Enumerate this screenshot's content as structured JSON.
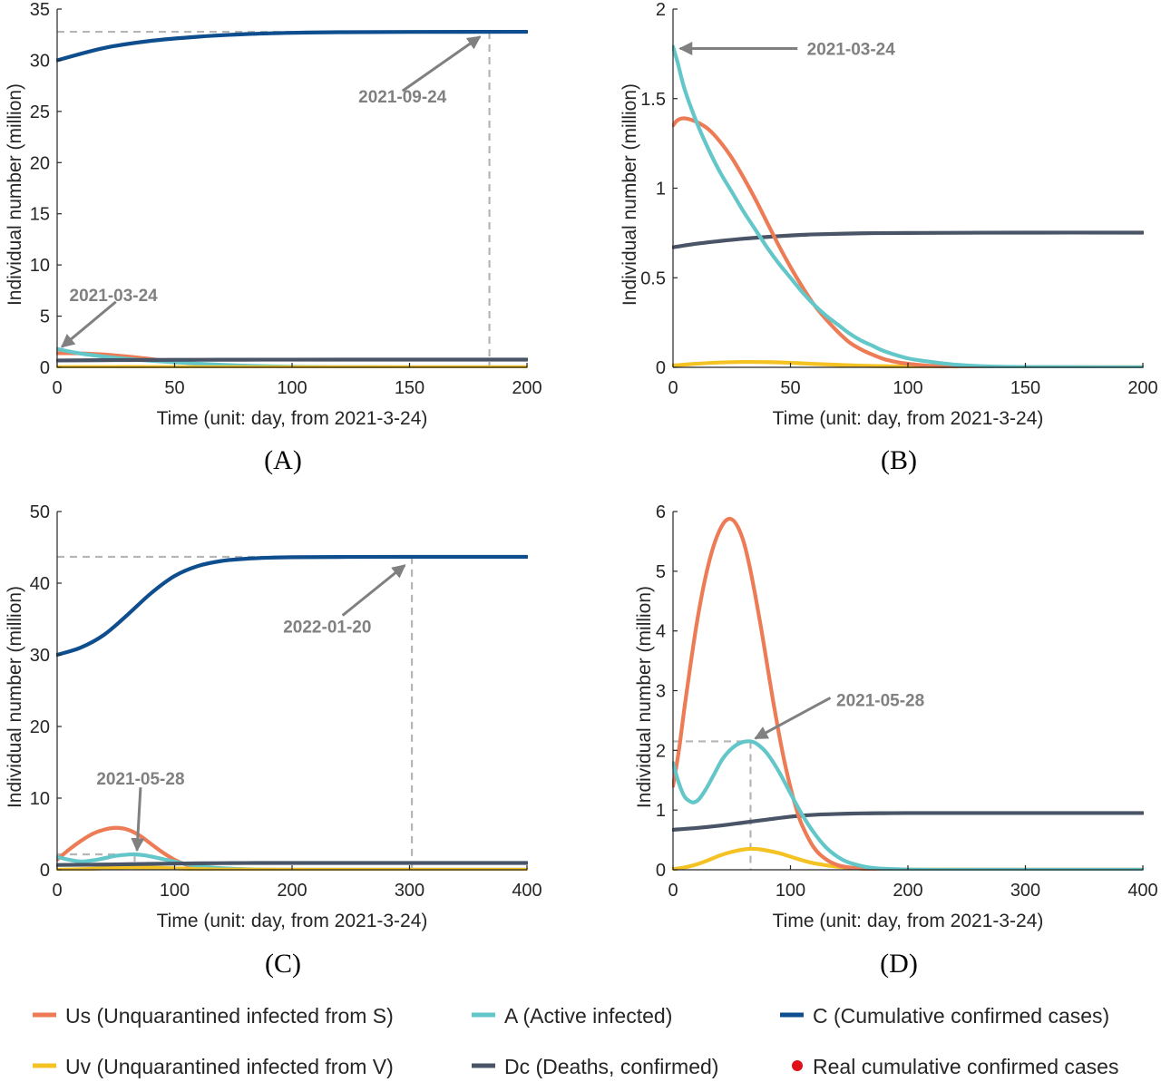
{
  "legend": [
    {
      "label": "Us (Unquarantined infected from S)",
      "color": "#ED7B55",
      "marker": "line"
    },
    {
      "label": "A (Active infected)",
      "color": "#63C6C8",
      "marker": "line"
    },
    {
      "label": "C (Cumulative confirmed cases)",
      "color": "#0E4E8E",
      "marker": "line"
    },
    {
      "label": "Uv (Unquarantined infected from V)",
      "color": "#F4C222",
      "marker": "line"
    },
    {
      "label": "Dc (Deaths, confirmed)",
      "color": "#4A5467",
      "marker": "line"
    },
    {
      "label": "Real cumulative confirmed cases",
      "color": "#E0101A",
      "marker": "dot"
    }
  ],
  "chart_data": [
    {
      "type": "line",
      "panel_label": "(A)",
      "xlabel": "Time (unit: day, from 2021-3-24)",
      "ylabel": "Individual number (million)",
      "xlim": [
        0,
        200
      ],
      "ylim": [
        0,
        35
      ],
      "xticks": [
        0,
        50,
        100,
        150,
        200
      ],
      "yticks": [
        0,
        5,
        10,
        15,
        20,
        25,
        30,
        35
      ],
      "series": [
        {
          "key": "C",
          "color": "#0E4E8E",
          "x": [
            0,
            20,
            40,
            60,
            80,
            100,
            120,
            150,
            200
          ],
          "y": [
            30.0,
            31.2,
            31.9,
            32.3,
            32.55,
            32.68,
            32.74,
            32.77,
            32.78
          ]
        },
        {
          "key": "Us",
          "color": "#ED7B55",
          "x": [
            0,
            10,
            20,
            30,
            40,
            50,
            60,
            70,
            80,
            100,
            120,
            200
          ],
          "y": [
            1.38,
            1.37,
            1.25,
            1.05,
            0.8,
            0.55,
            0.33,
            0.17,
            0.07,
            0.01,
            0.0,
            0.0
          ]
        },
        {
          "key": "A",
          "color": "#63C6C8",
          "x": [
            0,
            10,
            20,
            30,
            40,
            50,
            60,
            70,
            80,
            100,
            120,
            150,
            200
          ],
          "y": [
            1.79,
            1.35,
            1.05,
            0.82,
            0.64,
            0.5,
            0.36,
            0.25,
            0.16,
            0.05,
            0.01,
            0.0,
            0.0
          ]
        },
        {
          "key": "Uv",
          "color": "#F4C222",
          "x": [
            0,
            15,
            30,
            45,
            60,
            80,
            100,
            200
          ],
          "y": [
            0.01,
            0.025,
            0.03,
            0.025,
            0.018,
            0.008,
            0.003,
            0.0
          ]
        },
        {
          "key": "Dc",
          "color": "#4A5467",
          "x": [
            0,
            20,
            40,
            60,
            80,
            100,
            150,
            200
          ],
          "y": [
            0.67,
            0.7,
            0.72,
            0.735,
            0.745,
            0.75,
            0.752,
            0.752
          ]
        }
      ],
      "guides": [
        {
          "points": [
            [
              0,
              32.78
            ],
            [
              184,
              32.78
            ]
          ]
        },
        {
          "points": [
            [
              184,
              32.78
            ],
            [
              184,
              0
            ]
          ]
        }
      ],
      "annotations": [
        {
          "text": "2021-09-24",
          "tip": [
            180,
            32.3
          ],
          "tail": [
            147,
            27.0
          ],
          "label": [
            147,
            26.5
          ]
        },
        {
          "text": "2021-03-24",
          "tip": [
            2,
            2.0
          ],
          "tail": [
            25,
            6.4
          ],
          "label": [
            24,
            7.1
          ]
        }
      ]
    },
    {
      "type": "line",
      "panel_label": "(B)",
      "xlabel": "Time (unit: day, from 2021-3-24)",
      "ylabel": "Individual number (million)",
      "xlim": [
        0,
        200
      ],
      "ylim": [
        0,
        2
      ],
      "xticks": [
        0,
        50,
        100,
        150,
        200
      ],
      "yticks": [
        0,
        0.5,
        1,
        1.5,
        2
      ],
      "series": [
        {
          "key": "Dc",
          "color": "#4A5467",
          "x": [
            0,
            10,
            20,
            30,
            40,
            50,
            60,
            80,
            100,
            150,
            200
          ],
          "y": [
            0.67,
            0.69,
            0.705,
            0.718,
            0.728,
            0.736,
            0.742,
            0.748,
            0.75,
            0.752,
            0.752
          ]
        },
        {
          "key": "Uv",
          "color": "#F4C222",
          "x": [
            0,
            10,
            20,
            30,
            40,
            50,
            60,
            80,
            100,
            130,
            200
          ],
          "y": [
            0.01,
            0.02,
            0.027,
            0.03,
            0.029,
            0.025,
            0.019,
            0.009,
            0.004,
            0.001,
            0.0
          ]
        },
        {
          "key": "Us",
          "color": "#ED7B55",
          "x": [
            0,
            2,
            5,
            10,
            15,
            20,
            25,
            30,
            35,
            40,
            45,
            50,
            55,
            60,
            65,
            70,
            75,
            80,
            85,
            90,
            95,
            100,
            110,
            120,
            130,
            150,
            200
          ],
          "y": [
            1.35,
            1.38,
            1.39,
            1.37,
            1.33,
            1.26,
            1.17,
            1.06,
            0.94,
            0.81,
            0.68,
            0.56,
            0.45,
            0.35,
            0.27,
            0.2,
            0.14,
            0.1,
            0.07,
            0.045,
            0.03,
            0.02,
            0.008,
            0.003,
            0.001,
            0.0,
            0.0
          ]
        },
        {
          "key": "A",
          "color": "#63C6C8",
          "x": [
            0,
            2,
            5,
            10,
            15,
            20,
            25,
            30,
            35,
            40,
            45,
            50,
            55,
            60,
            65,
            70,
            75,
            80,
            85,
            90,
            100,
            110,
            120,
            130,
            150,
            200
          ],
          "y": [
            1.79,
            1.7,
            1.55,
            1.37,
            1.22,
            1.09,
            0.98,
            0.87,
            0.77,
            0.67,
            0.58,
            0.5,
            0.42,
            0.35,
            0.29,
            0.24,
            0.19,
            0.15,
            0.12,
            0.09,
            0.05,
            0.03,
            0.015,
            0.007,
            0.002,
            0.0
          ]
        }
      ],
      "guides": [],
      "annotations": [
        {
          "text": "2021-03-24",
          "tip": [
            3,
            1.78
          ],
          "tail": [
            53,
            1.78
          ],
          "label": [
            57,
            1.78
          ]
        }
      ]
    },
    {
      "type": "line",
      "panel_label": "(C)",
      "xlabel": "Time (unit: day, from 2021-3-24)",
      "ylabel": "Individual number (million)",
      "xlim": [
        0,
        400
      ],
      "ylim": [
        0,
        50
      ],
      "xticks": [
        0,
        100,
        200,
        300,
        400
      ],
      "yticks": [
        0,
        10,
        20,
        30,
        40,
        50
      ],
      "series": [
        {
          "key": "C",
          "color": "#0E4E8E",
          "x": [
            0,
            20,
            40,
            60,
            80,
            100,
            120,
            140,
            160,
            180,
            200,
            240,
            300,
            400
          ],
          "y": [
            30.0,
            31.0,
            32.8,
            35.6,
            38.6,
            41.0,
            42.4,
            43.1,
            43.4,
            43.55,
            43.62,
            43.66,
            43.68,
            43.68
          ]
        },
        {
          "key": "Us",
          "color": "#ED7B55",
          "x": [
            0,
            10,
            20,
            30,
            40,
            50,
            60,
            70,
            80,
            90,
            100,
            110,
            120,
            140,
            160,
            200,
            400
          ],
          "y": [
            1.4,
            2.8,
            4.0,
            5.0,
            5.6,
            5.85,
            5.6,
            4.8,
            3.6,
            2.4,
            1.4,
            0.7,
            0.3,
            0.05,
            0.01,
            0.0,
            0.0
          ]
        },
        {
          "key": "A",
          "color": "#63C6C8",
          "x": [
            0,
            10,
            20,
            30,
            40,
            50,
            60,
            66,
            75,
            90,
            110,
            130,
            160,
            200,
            400
          ],
          "y": [
            1.79,
            1.4,
            1.15,
            1.3,
            1.6,
            1.95,
            2.12,
            2.15,
            2.0,
            1.5,
            0.8,
            0.35,
            0.08,
            0.01,
            0.0
          ]
        },
        {
          "key": "Uv",
          "color": "#F4C222",
          "x": [
            0,
            20,
            40,
            60,
            66,
            80,
            100,
            120,
            150,
            200,
            400
          ],
          "y": [
            0.01,
            0.08,
            0.22,
            0.34,
            0.35,
            0.31,
            0.2,
            0.1,
            0.03,
            0.003,
            0.0
          ]
        },
        {
          "key": "Dc",
          "color": "#4A5467",
          "x": [
            0,
            40,
            80,
            120,
            160,
            200,
            300,
            400
          ],
          "y": [
            0.67,
            0.73,
            0.82,
            0.9,
            0.94,
            0.95,
            0.95,
            0.95
          ]
        }
      ],
      "guides": [
        {
          "points": [
            [
              0,
              43.68
            ],
            [
              302,
              43.68
            ]
          ]
        },
        {
          "points": [
            [
              302,
              43.68
            ],
            [
              302,
              0
            ]
          ]
        },
        {
          "points": [
            [
              0,
              2.15
            ],
            [
              66,
              2.15
            ]
          ]
        },
        {
          "points": [
            [
              66,
              2.15
            ],
            [
              66,
              0
            ]
          ]
        }
      ],
      "annotations": [
        {
          "text": "2022-01-20",
          "tip": [
            296,
            42.5
          ],
          "tail": [
            243,
            35.5
          ],
          "label": [
            230,
            34.0
          ]
        },
        {
          "text": "2021-05-28",
          "tip": [
            68,
            2.7
          ],
          "tail": [
            71,
            11.5
          ],
          "label": [
            71,
            12.8
          ]
        }
      ]
    },
    {
      "type": "line",
      "panel_label": "(D)",
      "xlabel": "Time (unit: day, from 2021-3-24)",
      "ylabel": "Individual number (million)",
      "xlim": [
        0,
        400
      ],
      "ylim": [
        0,
        6
      ],
      "xticks": [
        0,
        100,
        200,
        300,
        400
      ],
      "yticks": [
        0,
        1,
        2,
        3,
        4,
        5,
        6
      ],
      "series": [
        {
          "key": "Dc",
          "color": "#4A5467",
          "x": [
            0,
            20,
            40,
            60,
            80,
            100,
            120,
            140,
            160,
            180,
            200,
            250,
            300,
            400
          ],
          "y": [
            0.67,
            0.7,
            0.74,
            0.79,
            0.84,
            0.89,
            0.92,
            0.935,
            0.945,
            0.948,
            0.95,
            0.95,
            0.95,
            0.95
          ]
        },
        {
          "key": "Uv",
          "color": "#F4C222",
          "x": [
            0,
            10,
            20,
            30,
            40,
            50,
            60,
            66,
            75,
            90,
            100,
            110,
            120,
            140,
            160,
            200,
            400
          ],
          "y": [
            0.01,
            0.04,
            0.09,
            0.16,
            0.24,
            0.3,
            0.34,
            0.35,
            0.34,
            0.28,
            0.22,
            0.16,
            0.11,
            0.05,
            0.02,
            0.003,
            0.0
          ]
        },
        {
          "key": "Us",
          "color": "#ED7B55",
          "x": [
            0,
            5,
            10,
            15,
            20,
            25,
            30,
            35,
            40,
            45,
            50,
            55,
            60,
            65,
            70,
            75,
            80,
            85,
            90,
            95,
            100,
            105,
            110,
            120,
            130,
            140,
            150,
            170,
            200,
            250,
            400
          ],
          "y": [
            1.4,
            2.0,
            2.75,
            3.45,
            4.1,
            4.65,
            5.1,
            5.45,
            5.7,
            5.85,
            5.87,
            5.75,
            5.5,
            5.1,
            4.6,
            4.05,
            3.45,
            2.85,
            2.3,
            1.8,
            1.38,
            1.02,
            0.74,
            0.37,
            0.18,
            0.08,
            0.04,
            0.01,
            0.0,
            0.0,
            0.0
          ]
        },
        {
          "key": "A",
          "color": "#63C6C8",
          "x": [
            0,
            5,
            10,
            15,
            18,
            22,
            28,
            35,
            42,
            50,
            58,
            66,
            72,
            80,
            90,
            100,
            110,
            120,
            130,
            140,
            150,
            170,
            200,
            250,
            400
          ],
          "y": [
            1.79,
            1.45,
            1.22,
            1.14,
            1.13,
            1.18,
            1.35,
            1.6,
            1.85,
            2.03,
            2.13,
            2.15,
            2.1,
            1.95,
            1.65,
            1.28,
            0.92,
            0.62,
            0.38,
            0.22,
            0.12,
            0.03,
            0.005,
            0.0,
            0.0
          ]
        }
      ],
      "guides": [
        {
          "points": [
            [
              0,
              2.15
            ],
            [
              66,
              2.15
            ]
          ]
        },
        {
          "points": [
            [
              66,
              2.15
            ],
            [
              66,
              0
            ]
          ]
        }
      ],
      "annotations": [
        {
          "text": "2021-05-28",
          "tip": [
            70,
            2.2
          ],
          "tail": [
            134,
            2.88
          ],
          "label": [
            139,
            2.85
          ]
        }
      ]
    }
  ]
}
